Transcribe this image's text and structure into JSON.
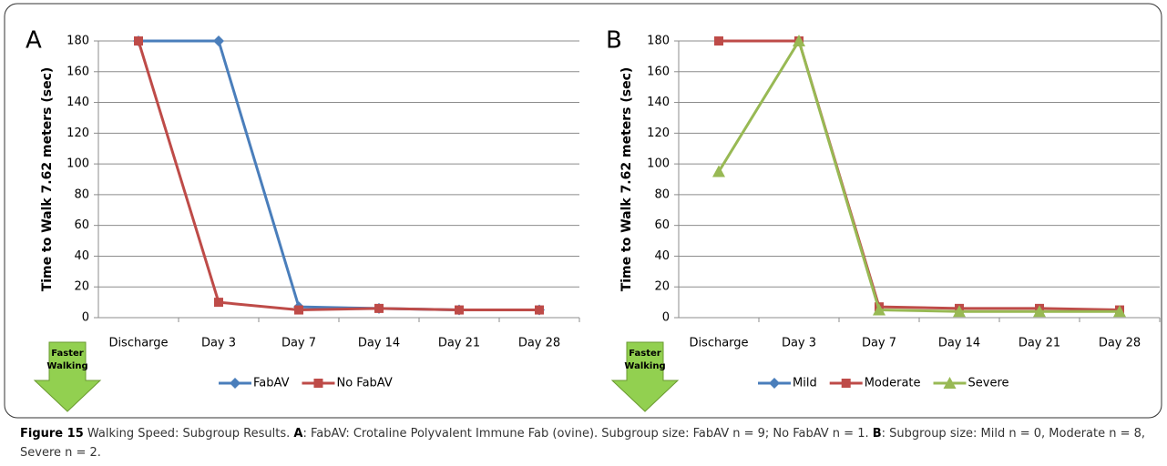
{
  "chart_data": [
    {
      "type": "line",
      "panel": "A",
      "ylabel": "Time to Walk 7.62 meters (sec)",
      "categories": [
        "Discharge",
        "Day 3",
        "Day 7",
        "Day 14",
        "Day 21",
        "Day 28"
      ],
      "series": [
        {
          "name": "FabAV",
          "color": "#4a7ebb",
          "marker": "diamond",
          "values": [
            180,
            180,
            7,
            6,
            5,
            5
          ]
        },
        {
          "name": "No FabAV",
          "color": "#be4b48",
          "marker": "square",
          "values": [
            180,
            10,
            5,
            6,
            5,
            5
          ]
        }
      ],
      "ylim": [
        0,
        180
      ],
      "yticks": [
        0,
        20,
        40,
        60,
        80,
        100,
        120,
        140,
        160,
        180
      ],
      "grid": true,
      "annotation": [
        "Faster",
        "Walking"
      ]
    },
    {
      "type": "line",
      "panel": "B",
      "ylabel": "Time to Walk 7.62 meters (sec)",
      "categories": [
        "Discharge",
        "Day 3",
        "Day 7",
        "Day 14",
        "Day 21",
        "Day 28"
      ],
      "series": [
        {
          "name": "Mild",
          "color": "#4a7ebb",
          "marker": "diamond",
          "values": [
            null,
            null,
            null,
            null,
            null,
            null
          ]
        },
        {
          "name": "Moderate",
          "color": "#be4b48",
          "marker": "square",
          "values": [
            180,
            180,
            7,
            6,
            6,
            5
          ]
        },
        {
          "name": "Severe",
          "color": "#98b954",
          "marker": "triangle",
          "values": [
            95,
            180,
            5,
            4,
            4,
            4
          ]
        }
      ],
      "ylim": [
        0,
        180
      ],
      "yticks": [
        0,
        20,
        40,
        60,
        80,
        100,
        120,
        140,
        160,
        180
      ],
      "grid": true,
      "annotation": [
        "Faster",
        "Walking"
      ]
    }
  ],
  "caption": {
    "label": "Figure 15",
    "title": "Walking Speed: Subgroup Results.",
    "a_text": ": FabAV: Crotaline Polyvalent Immune Fab (ovine). Subgroup size: FabAV n = 9; No FabAV n = 1.",
    "b_text": ": Subgroup size: Mild n = 0, Moderate n = 8, Severe n = 2."
  }
}
